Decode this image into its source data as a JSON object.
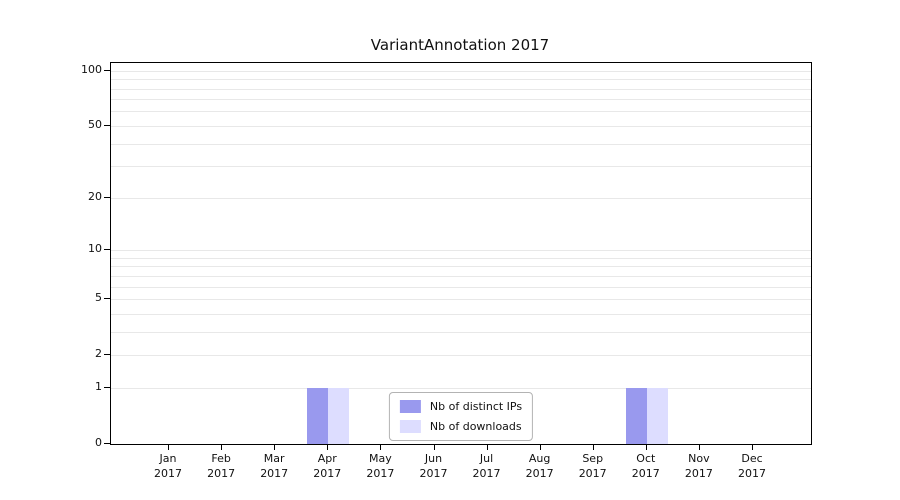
{
  "chart_data": {
    "type": "bar",
    "title": "VariantAnnotation 2017",
    "categories": [
      {
        "label": "Jan",
        "year": "2017"
      },
      {
        "label": "Feb",
        "year": "2017"
      },
      {
        "label": "Mar",
        "year": "2017"
      },
      {
        "label": "Apr",
        "year": "2017"
      },
      {
        "label": "May",
        "year": "2017"
      },
      {
        "label": "Jun",
        "year": "2017"
      },
      {
        "label": "Jul",
        "year": "2017"
      },
      {
        "label": "Aug",
        "year": "2017"
      },
      {
        "label": "Sep",
        "year": "2017"
      },
      {
        "label": "Oct",
        "year": "2017"
      },
      {
        "label": "Nov",
        "year": "2017"
      },
      {
        "label": "Dec",
        "year": "2017"
      }
    ],
    "series": [
      {
        "name": "Nb of distinct IPs",
        "color": "#9999ee",
        "values": [
          0,
          0,
          0,
          1,
          0,
          0,
          0,
          0,
          0,
          1,
          0,
          0
        ]
      },
      {
        "name": "Nb of downloads",
        "color": "#ddddff",
        "values": [
          0,
          0,
          0,
          1,
          0,
          0,
          0,
          0,
          0,
          1,
          0,
          0
        ]
      }
    ],
    "yticks": [
      0,
      1,
      2,
      5,
      10,
      20,
      50,
      100
    ],
    "minor_gridlines": [
      1,
      2,
      3,
      4,
      5,
      6,
      7,
      8,
      9,
      10,
      20,
      30,
      40,
      50,
      60,
      70,
      80,
      90,
      100
    ],
    "ylim": [
      0,
      110
    ],
    "scale": "log1p",
    "grid": "horizontal",
    "legend_position": "bottom-center"
  }
}
